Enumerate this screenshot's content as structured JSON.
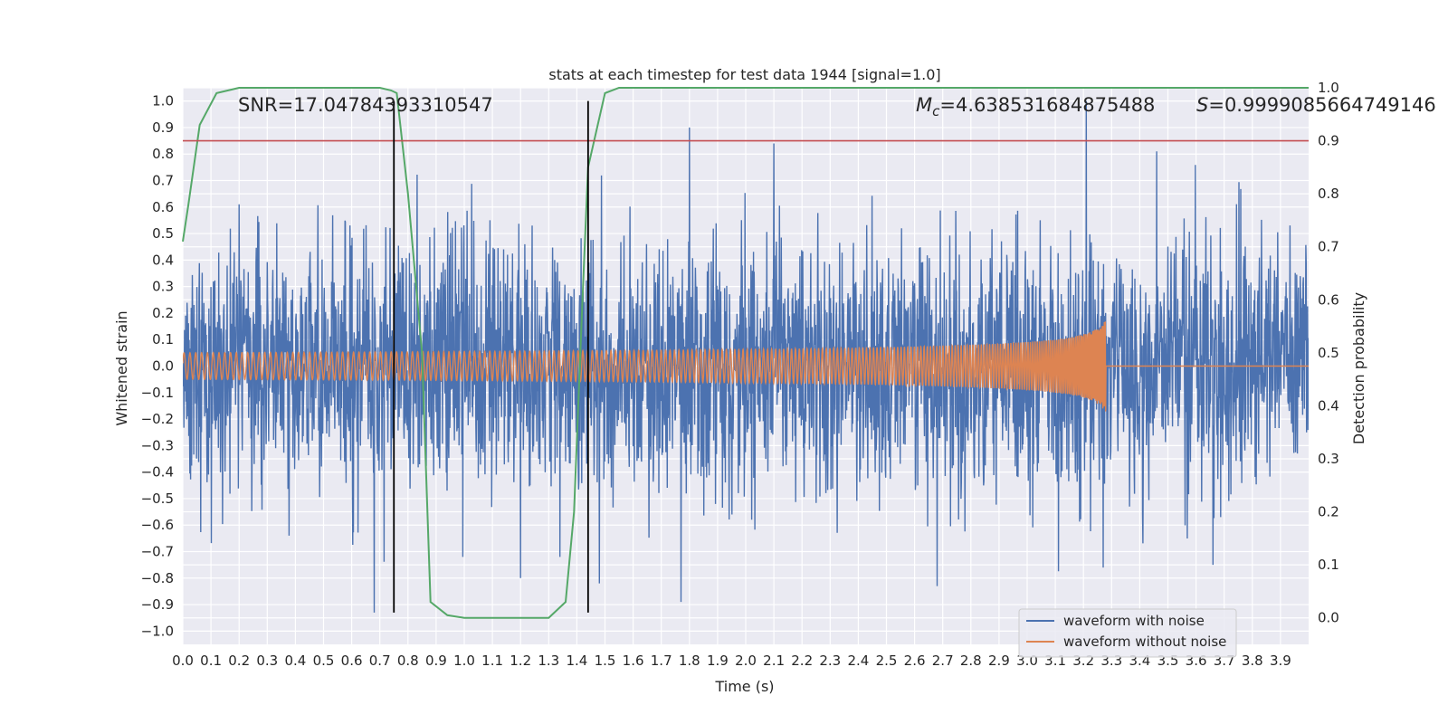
{
  "chart_data": {
    "type": "line",
    "title": "stats at each timestep for test data 1944 [signal=1.0]",
    "xlabel": "Time (s)",
    "ylabel": "Whitened strain",
    "y2label": "Detection probability",
    "xlim": [
      0.0,
      4.0
    ],
    "ylim": [
      -1.05,
      1.05
    ],
    "y2lim": [
      -0.05,
      1.0
    ],
    "x_ticks": [
      "0.0",
      "0.1",
      "0.2",
      "0.3",
      "0.4",
      "0.5",
      "0.6",
      "0.7",
      "0.8",
      "0.9",
      "1.0",
      "1.1",
      "1.2",
      "1.3",
      "1.4",
      "1.5",
      "1.6",
      "1.7",
      "1.8",
      "1.9",
      "2.0",
      "2.1",
      "2.2",
      "2.3",
      "2.4",
      "2.5",
      "2.6",
      "2.7",
      "2.8",
      "2.9",
      "3.0",
      "3.1",
      "3.2",
      "3.3",
      "3.4",
      "3.5",
      "3.6",
      "3.7",
      "3.8",
      "3.9"
    ],
    "y_ticks": [
      "1.0",
      "0.9",
      "0.8",
      "0.7",
      "0.6",
      "0.5",
      "0.4",
      "0.3",
      "0.2",
      "0.1",
      "0.0",
      "−0.1",
      "−0.2",
      "−0.3",
      "−0.4",
      "−0.5",
      "−0.6",
      "−0.7",
      "−0.8",
      "−0.9",
      "−1.0"
    ],
    "y2_ticks": [
      "1.0",
      "0.9",
      "0.8",
      "0.7",
      "0.6",
      "0.5",
      "0.4",
      "0.3",
      "0.2",
      "0.1",
      "0.0"
    ],
    "annotations": {
      "snr": "SNR=17.04784393310547",
      "mc_symbol": "M",
      "mc_sub": "c",
      "mc_value": "=4.638531684875488",
      "s_symbol": "S",
      "s_value": "=0.9999085664749146"
    },
    "grid": true,
    "legend_position": "lower-right",
    "series": [
      {
        "name": "waveform with noise",
        "color": "#4c72b0",
        "kind": "noise",
        "envelope": 0.55,
        "peaks": [
          {
            "x": 0.68,
            "y": -0.93
          },
          {
            "x": 1.2,
            "y": -0.8
          },
          {
            "x": 1.34,
            "y": -0.72
          },
          {
            "x": 1.48,
            "y": -0.82
          },
          {
            "x": 1.8,
            "y": 0.9
          },
          {
            "x": 1.77,
            "y": -0.89
          },
          {
            "x": 2.1,
            "y": 0.84
          },
          {
            "x": 2.68,
            "y": -0.83
          },
          {
            "x": 3.21,
            "y": 1.0
          },
          {
            "x": 3.27,
            "y": -0.76
          },
          {
            "x": 3.46,
            "y": 0.81
          },
          {
            "x": 3.66,
            "y": -0.75
          }
        ]
      },
      {
        "name": "waveform without noise",
        "color": "#dd8452",
        "kind": "chirp",
        "start_amp": 0.05,
        "end_time": 3.28,
        "end_amp": 0.36,
        "post_level": 0.0
      },
      {
        "name": "detection probability",
        "color": "#55a868",
        "kind": "probability",
        "axis": "right",
        "x": [
          0.0,
          0.02,
          0.06,
          0.12,
          0.2,
          0.3,
          0.5,
          0.7,
          0.74,
          0.76,
          0.8,
          0.85,
          0.88,
          0.94,
          1.0,
          1.1,
          1.3,
          1.36,
          1.39,
          1.42,
          1.44,
          1.5,
          1.55,
          2.0,
          3.0,
          4.0
        ],
        "y": [
          0.71,
          0.78,
          0.93,
          0.99,
          1.0,
          1.0,
          1.0,
          1.0,
          0.995,
          0.99,
          0.8,
          0.5,
          0.03,
          0.005,
          0.0,
          0.0,
          0.0,
          0.03,
          0.2,
          0.6,
          0.85,
          0.99,
          1.0,
          1.0,
          1.0,
          1.0
        ]
      }
    ],
    "horizontal_lines": [
      {
        "axis": "right",
        "y": 0.9,
        "color": "#c44e52"
      }
    ],
    "vertical_lines": [
      {
        "x": 0.75,
        "y_from": -0.93,
        "y_to": 1.0,
        "color": "#000000"
      },
      {
        "x": 1.44,
        "y_from": -0.93,
        "y_to": 1.0,
        "color": "#000000"
      }
    ]
  }
}
